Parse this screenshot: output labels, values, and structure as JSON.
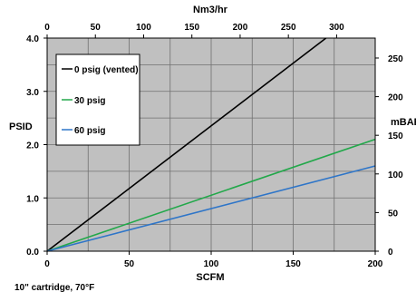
{
  "chart_data": {
    "type": "line",
    "x_bottom": {
      "label": "SCFM",
      "range": [
        0,
        200
      ],
      "ticks": [
        "0",
        "50",
        "100",
        "150",
        "200"
      ]
    },
    "x_top": {
      "label": "Nm3/hr",
      "range": [
        0,
        340
      ],
      "ticks": [
        "0",
        "50",
        "100",
        "150",
        "200",
        "250",
        "300"
      ]
    },
    "y_left": {
      "label": "PSID",
      "range": [
        0,
        4.0
      ],
      "ticks": [
        "0.0",
        "1.0",
        "2.0",
        "3.0",
        "4.0"
      ]
    },
    "y_right": {
      "label": "mBAR",
      "range": [
        0,
        275.8
      ],
      "ticks": [
        "0",
        "50",
        "100",
        "150",
        "200",
        "250"
      ]
    },
    "grid": true,
    "plot_background": "#c0c0c0",
    "legend_position": "top-left",
    "series": [
      {
        "name": "0 psig (vented)",
        "color": "#000000",
        "x": [
          0,
          170
        ],
        "y": [
          0,
          4.0
        ]
      },
      {
        "name": "30 psig",
        "color": "#22a84a",
        "x": [
          0,
          200
        ],
        "y": [
          0,
          2.1
        ]
      },
      {
        "name": "60 psig",
        "color": "#2e75c8",
        "x": [
          0,
          200
        ],
        "y": [
          0,
          1.6
        ]
      }
    ],
    "footnote": "10\" cartridge, 70°F"
  }
}
